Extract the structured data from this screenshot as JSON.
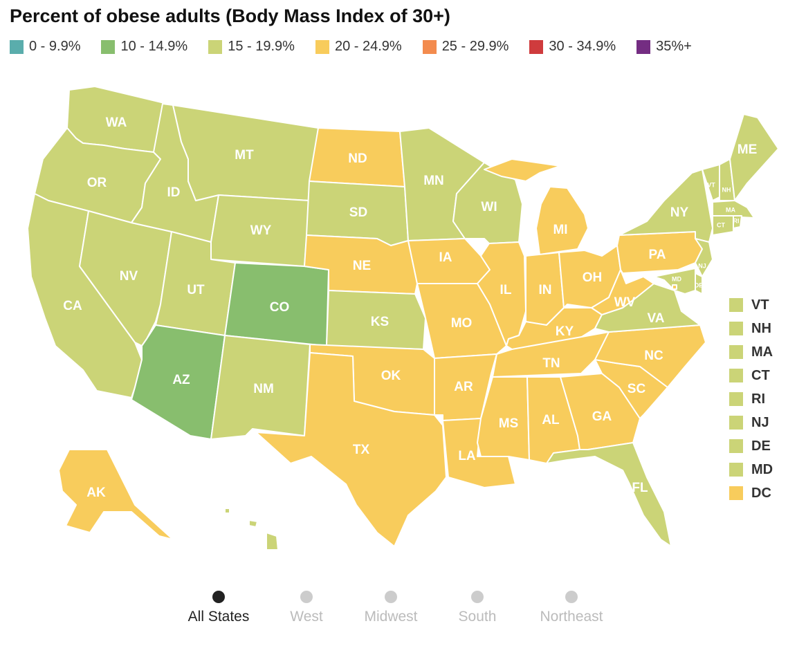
{
  "title": "Percent of obese adults (Body Mass Index of 30+)",
  "legend": [
    {
      "label": "0 - 9.9%",
      "color": "#5aadac"
    },
    {
      "label": "10 - 14.9%",
      "color": "#88be6e"
    },
    {
      "label": "15 - 19.9%",
      "color": "#cbd477"
    },
    {
      "label": "20 - 24.9%",
      "color": "#f8cc5c"
    },
    {
      "label": "25 - 29.9%",
      "color": "#f38b4e"
    },
    {
      "label": "30 - 34.9%",
      "color": "#cf3b3d"
    },
    {
      "label": "35%+",
      "color": "#742d82"
    }
  ],
  "states": [
    {
      "code": "WA",
      "bin": "15 - 19.9%"
    },
    {
      "code": "OR",
      "bin": "15 - 19.9%"
    },
    {
      "code": "CA",
      "bin": "15 - 19.9%"
    },
    {
      "code": "NV",
      "bin": "15 - 19.9%"
    },
    {
      "code": "ID",
      "bin": "15 - 19.9%"
    },
    {
      "code": "MT",
      "bin": "15 - 19.9%"
    },
    {
      "code": "WY",
      "bin": "15 - 19.9%"
    },
    {
      "code": "UT",
      "bin": "15 - 19.9%"
    },
    {
      "code": "AZ",
      "bin": "10 - 14.9%"
    },
    {
      "code": "CO",
      "bin": "10 - 14.9%"
    },
    {
      "code": "NM",
      "bin": "15 - 19.9%"
    },
    {
      "code": "ND",
      "bin": "20 - 24.9%"
    },
    {
      "code": "SD",
      "bin": "15 - 19.9%"
    },
    {
      "code": "NE",
      "bin": "20 - 24.9%"
    },
    {
      "code": "KS",
      "bin": "15 - 19.9%"
    },
    {
      "code": "OK",
      "bin": "20 - 24.9%"
    },
    {
      "code": "TX",
      "bin": "20 - 24.9%"
    },
    {
      "code": "MN",
      "bin": "15 - 19.9%"
    },
    {
      "code": "IA",
      "bin": "20 - 24.9%"
    },
    {
      "code": "MO",
      "bin": "20 - 24.9%"
    },
    {
      "code": "AR",
      "bin": "20 - 24.9%"
    },
    {
      "code": "LA",
      "bin": "20 - 24.9%"
    },
    {
      "code": "WI",
      "bin": "15 - 19.9%"
    },
    {
      "code": "IL",
      "bin": "20 - 24.9%"
    },
    {
      "code": "MI",
      "bin": "20 - 24.9%"
    },
    {
      "code": "IN",
      "bin": "20 - 24.9%"
    },
    {
      "code": "OH",
      "bin": "20 - 24.9%"
    },
    {
      "code": "KY",
      "bin": "20 - 24.9%"
    },
    {
      "code": "TN",
      "bin": "20 - 24.9%"
    },
    {
      "code": "MS",
      "bin": "20 - 24.9%"
    },
    {
      "code": "AL",
      "bin": "20 - 24.9%"
    },
    {
      "code": "GA",
      "bin": "20 - 24.9%"
    },
    {
      "code": "FL",
      "bin": "15 - 19.9%"
    },
    {
      "code": "SC",
      "bin": "20 - 24.9%"
    },
    {
      "code": "NC",
      "bin": "20 - 24.9%"
    },
    {
      "code": "VA",
      "bin": "15 - 19.9%"
    },
    {
      "code": "WV",
      "bin": "20 - 24.9%"
    },
    {
      "code": "PA",
      "bin": "20 - 24.9%"
    },
    {
      "code": "NY",
      "bin": "15 - 19.9%"
    },
    {
      "code": "VT",
      "bin": "15 - 19.9%"
    },
    {
      "code": "NH",
      "bin": "15 - 19.9%"
    },
    {
      "code": "ME",
      "bin": "15 - 19.9%"
    },
    {
      "code": "MA",
      "bin": "15 - 19.9%"
    },
    {
      "code": "CT",
      "bin": "15 - 19.9%"
    },
    {
      "code": "RI",
      "bin": "15 - 19.9%"
    },
    {
      "code": "NJ",
      "bin": "15 - 19.9%"
    },
    {
      "code": "DE",
      "bin": "15 - 19.9%"
    },
    {
      "code": "MD",
      "bin": "15 - 19.9%"
    },
    {
      "code": "DC",
      "bin": "20 - 24.9%"
    },
    {
      "code": "AK",
      "bin": "20 - 24.9%"
    },
    {
      "code": "HI",
      "bin": "15 - 19.9%"
    }
  ],
  "small_states": [
    {
      "code": "VT",
      "color": "#cbd477"
    },
    {
      "code": "NH",
      "color": "#cbd477"
    },
    {
      "code": "MA",
      "color": "#cbd477"
    },
    {
      "code": "CT",
      "color": "#cbd477"
    },
    {
      "code": "RI",
      "color": "#cbd477"
    },
    {
      "code": "NJ",
      "color": "#cbd477"
    },
    {
      "code": "DE",
      "color": "#cbd477"
    },
    {
      "code": "MD",
      "color": "#cbd477"
    },
    {
      "code": "DC",
      "color": "#f8cc5c"
    }
  ],
  "nav": [
    {
      "label": "All States",
      "active": true
    },
    {
      "label": "West",
      "active": false
    },
    {
      "label": "Midwest",
      "active": false
    },
    {
      "label": "South",
      "active": false
    },
    {
      "label": "Northeast",
      "active": false
    }
  ],
  "colors": {
    "active_dot": "#222222",
    "inactive_dot": "#cccccc",
    "active_text": "#222222",
    "inactive_text": "#bbbbbb"
  }
}
